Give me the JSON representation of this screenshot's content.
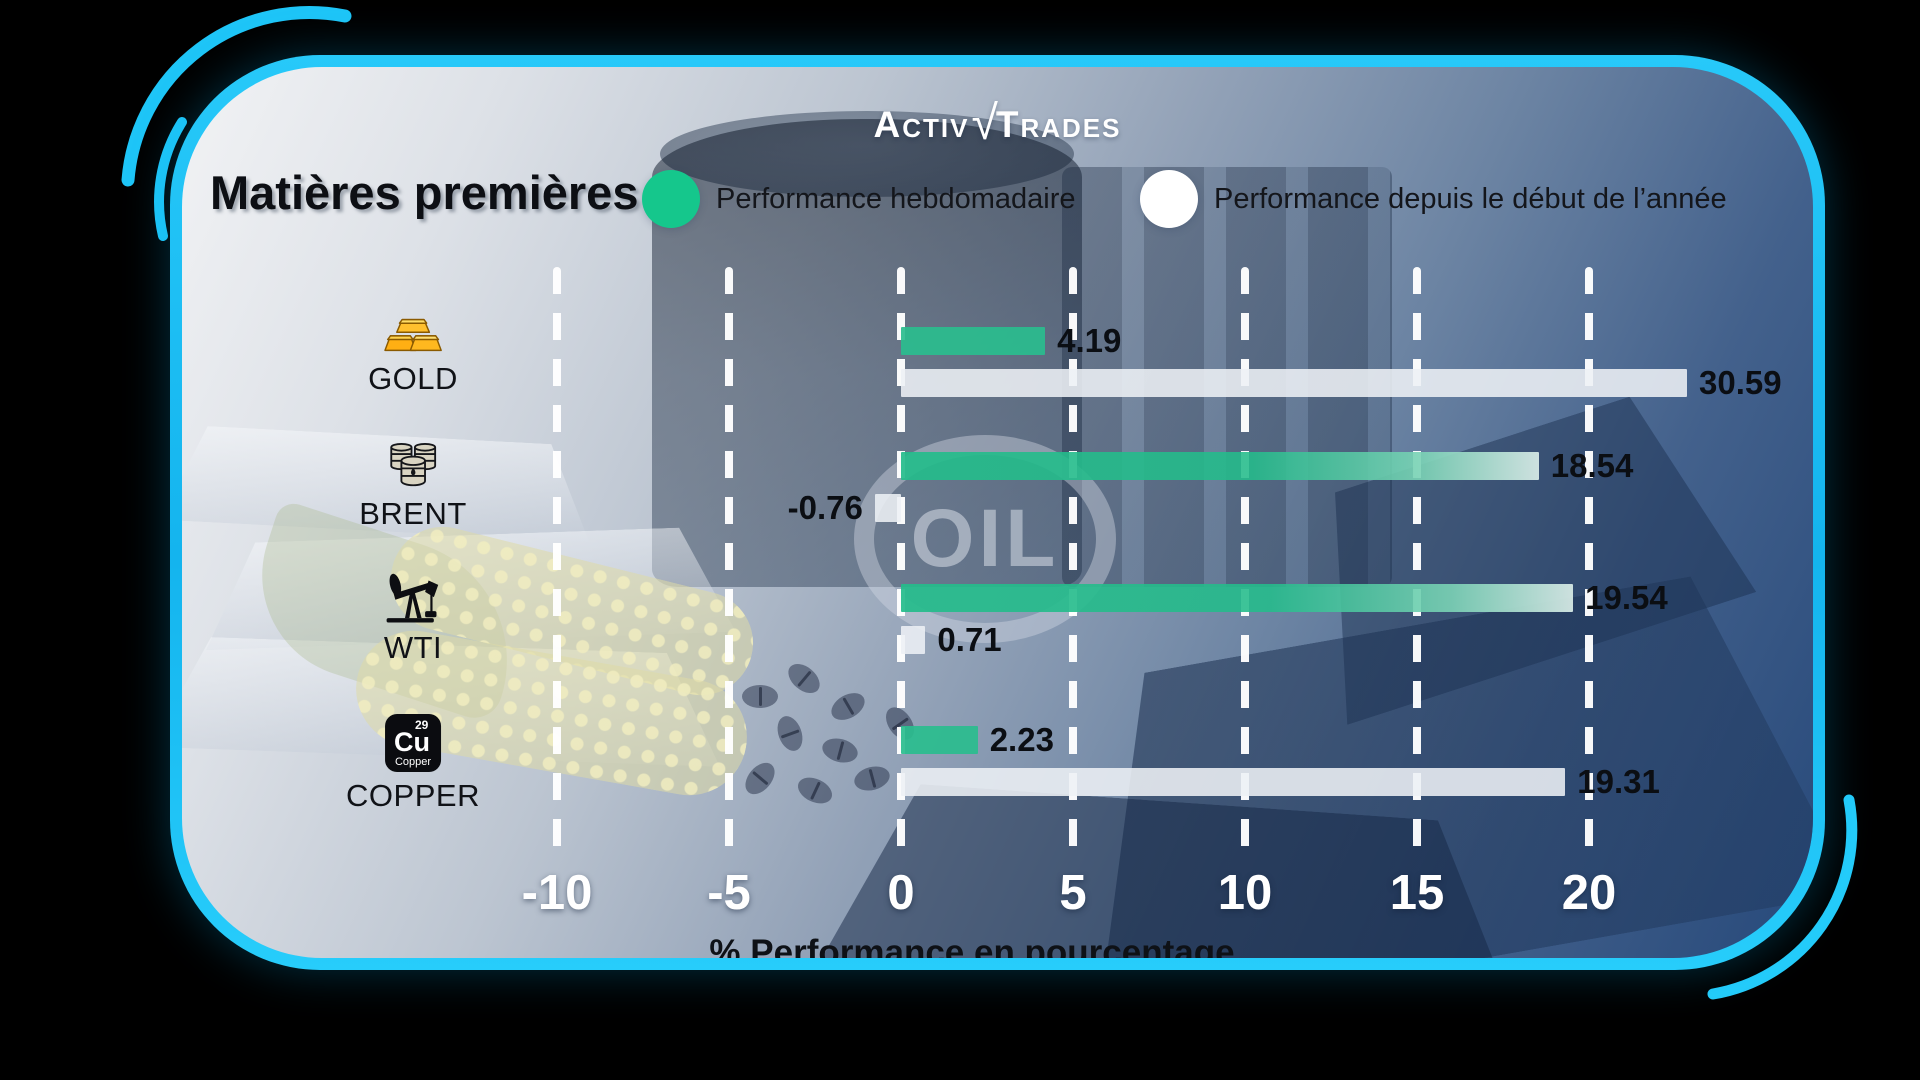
{
  "brand": {
    "name_left": "Activ",
    "radical": "√",
    "name_right": "Trades"
  },
  "title": "Matières premières",
  "legend": {
    "weekly": {
      "label": "Performance hebdomadaire",
      "color": "#15c78c"
    },
    "ytd": {
      "label": "Performance depuis le début de l’année",
      "color": "#ffffff"
    }
  },
  "decor": {
    "oil_text": "OIL"
  },
  "copper_icon": {
    "atomic_number": "29",
    "symbol": "Cu",
    "name": "Copper"
  },
  "chart_data": {
    "type": "bar",
    "orientation": "horizontal",
    "title": "Matières premières",
    "xlabel": "% Performance en pourcentage",
    "x_ticks": [
      -10,
      -5,
      0,
      5,
      10,
      15,
      20
    ],
    "xlim": [
      -12.7,
      23
    ],
    "grid": "vertical-dashed-white",
    "legend_position": "top",
    "value_labels": true,
    "categories": [
      {
        "label": "GOLD",
        "icon": "gold-bars-icon"
      },
      {
        "label": "BRENT",
        "icon": "oil-barrels-icon"
      },
      {
        "label": "WTI",
        "icon": "pump-jack-icon"
      },
      {
        "label": "COPPER",
        "icon": "copper-element-icon"
      }
    ],
    "series": [
      {
        "name": "Performance hebdomadaire",
        "color": "#15c78c",
        "values": [
          4.19,
          18.54,
          19.54,
          2.23
        ]
      },
      {
        "name": "Performance depuis le début de l’année",
        "color": "#ffffff",
        "values": [
          30.59,
          -0.76,
          0.71,
          19.31
        ]
      }
    ]
  }
}
